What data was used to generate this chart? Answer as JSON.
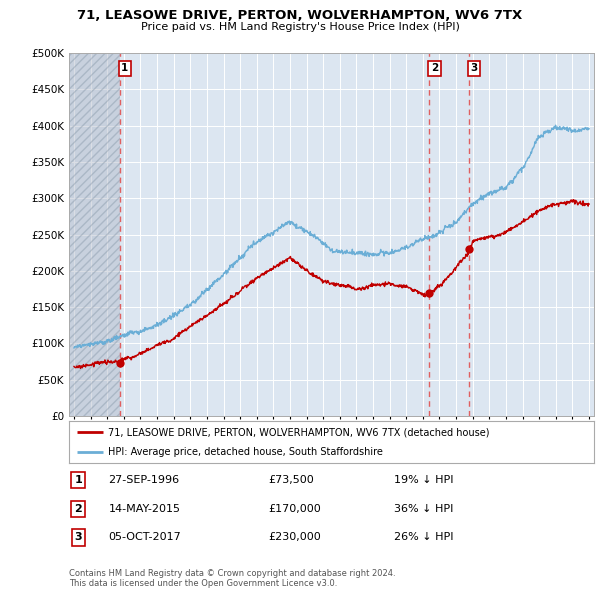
{
  "title": "71, LEASOWE DRIVE, PERTON, WOLVERHAMPTON, WV6 7TX",
  "subtitle": "Price paid vs. HM Land Registry's House Price Index (HPI)",
  "ylim": [
    0,
    500000
  ],
  "yticks": [
    0,
    50000,
    100000,
    150000,
    200000,
    250000,
    300000,
    350000,
    400000,
    450000,
    500000
  ],
  "ytick_labels": [
    "£0",
    "£50K",
    "£100K",
    "£150K",
    "£200K",
    "£250K",
    "£300K",
    "£350K",
    "£400K",
    "£450K",
    "£500K"
  ],
  "xlim_start": 1993.7,
  "xlim_end": 2025.3,
  "hpi_color": "#6baed6",
  "price_color": "#c00000",
  "vline_color": "#e06060",
  "plot_bg": "#dce6f1",
  "grid_color": "#ffffff",
  "hatch_color": "#b0b8c8",
  "sales": [
    {
      "date_num": 1996.74,
      "price": 73500,
      "label": "1"
    },
    {
      "date_num": 2015.37,
      "price": 170000,
      "label": "2"
    },
    {
      "date_num": 2017.76,
      "price": 230000,
      "label": "3"
    }
  ],
  "legend_entries": [
    "71, LEASOWE DRIVE, PERTON, WOLVERHAMPTON, WV6 7TX (detached house)",
    "HPI: Average price, detached house, South Staffordshire"
  ],
  "table_rows": [
    {
      "num": "1",
      "date": "27-SEP-1996",
      "price": "£73,500",
      "note": "19% ↓ HPI"
    },
    {
      "num": "2",
      "date": "14-MAY-2015",
      "price": "£170,000",
      "note": "36% ↓ HPI"
    },
    {
      "num": "3",
      "date": "05-OCT-2017",
      "price": "£230,000",
      "note": "26% ↓ HPI"
    }
  ],
  "footer": "Contains HM Land Registry data © Crown copyright and database right 2024.\nThis data is licensed under the Open Government Licence v3.0."
}
